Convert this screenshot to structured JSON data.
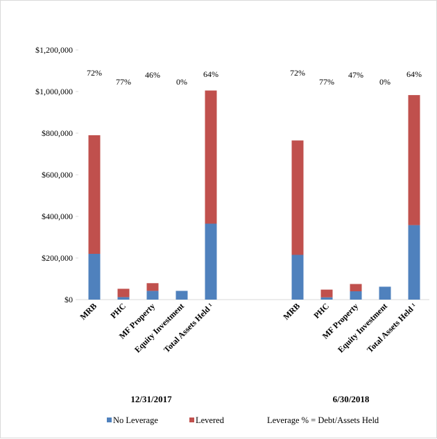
{
  "chart_data": {
    "type": "bar",
    "stacked": true,
    "groups": [
      {
        "label": "12/31/2017",
        "categories": [
          "MRB",
          "PHC",
          "MF Property",
          "Equity Investment",
          "Total Assets Held ¹"
        ],
        "series": [
          {
            "name": "No Leverage",
            "values": [
              220000,
              12000,
              42000,
              42000,
              365000
            ]
          },
          {
            "name": "Levered",
            "values": [
              570000,
              40000,
              37000,
              0,
              640000
            ]
          }
        ],
        "leverage_labels": [
          "72%",
          "77%",
          "46%",
          "0%",
          "64%"
        ]
      },
      {
        "label": "6/30/2018",
        "categories": [
          "MRB",
          "PHC",
          "MF Property",
          "Equity Investment",
          "Total Assets Held ¹"
        ],
        "series": [
          {
            "name": "No Leverage",
            "values": [
              215000,
              11000,
              40000,
              62000,
              358000
            ]
          },
          {
            "name": "Levered",
            "values": [
              550000,
              37000,
              35000,
              0,
              625000
            ]
          }
        ],
        "leverage_labels": [
          "72%",
          "77%",
          "47%",
          "0%",
          "64%"
        ]
      }
    ],
    "ylim": [
      0,
      1200000
    ],
    "yticks": [
      "$0",
      "$200,000",
      "$400,000",
      "$600,000",
      "$800,000",
      "$1,000,000",
      "$1,200,000"
    ],
    "legend": {
      "entries": [
        "No Leverage",
        "Levered"
      ],
      "note": "Leverage % = Debt/Assets Held",
      "placement": "bottom"
    },
    "colors": {
      "No Leverage": "#4f81bd",
      "Levered": "#c0504d"
    },
    "grid": false
  }
}
